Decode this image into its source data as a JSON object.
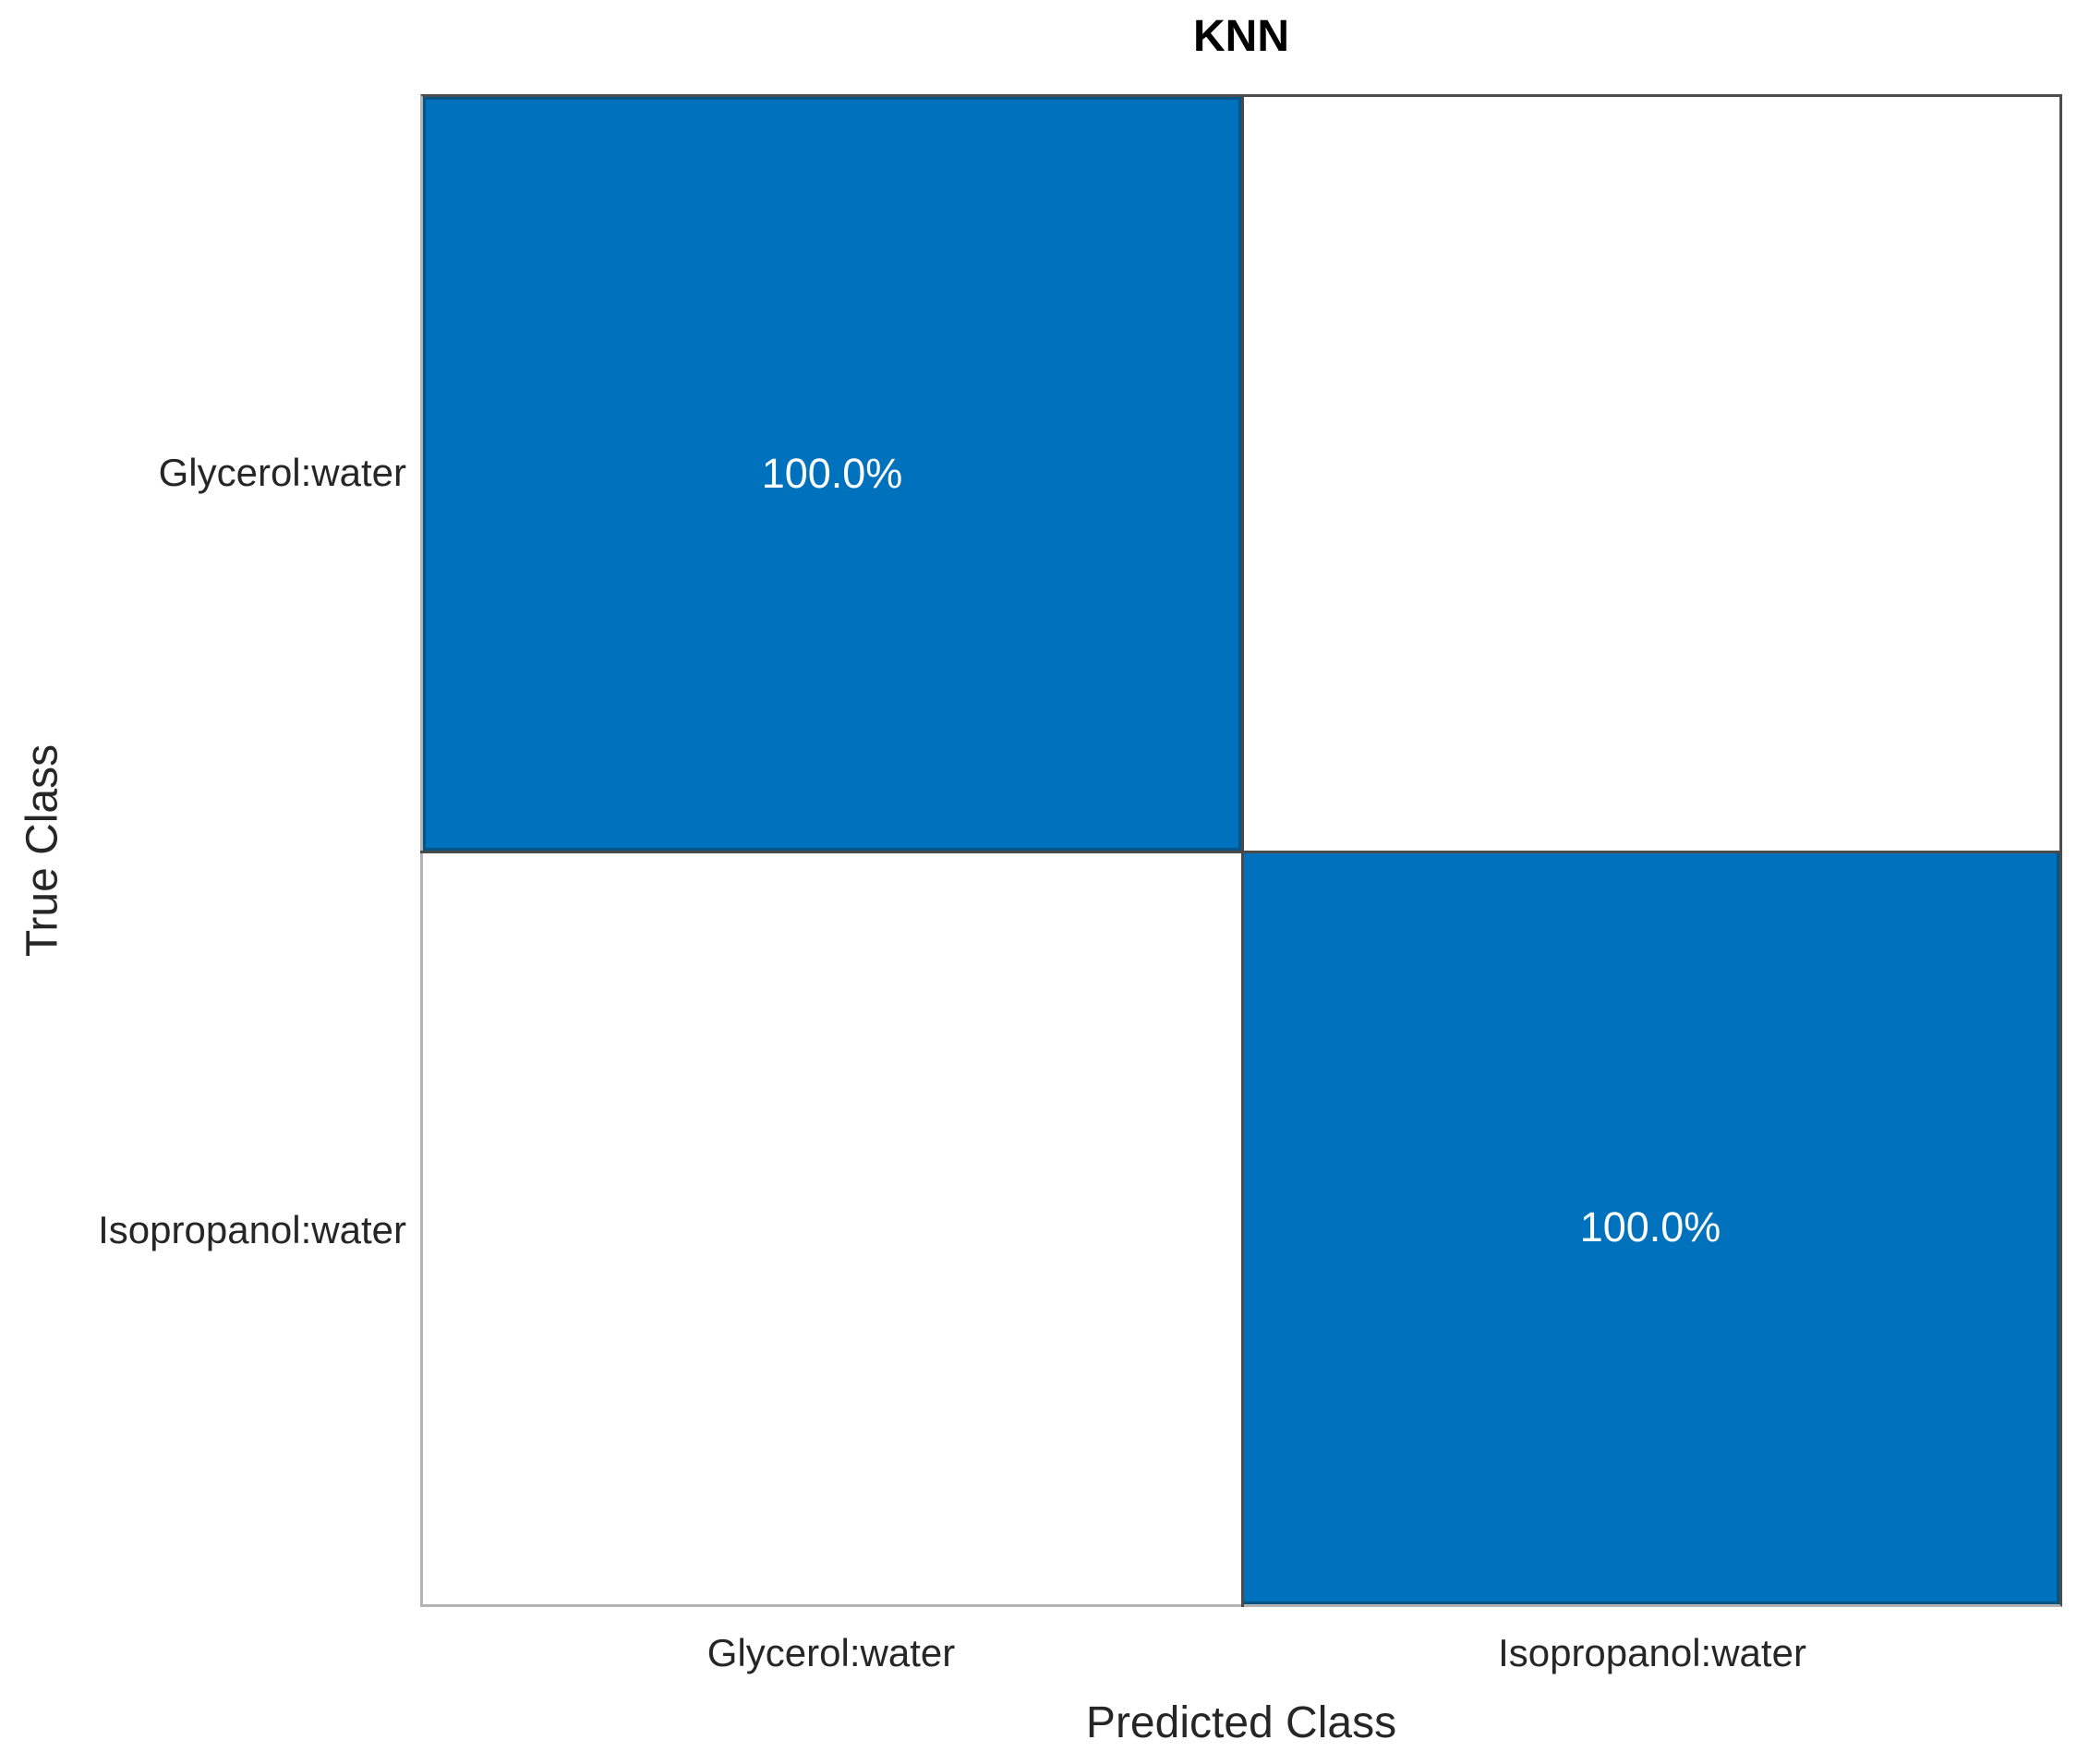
{
  "figure": {
    "title": "KNN",
    "x_axis": {
      "label": "Predicted Class",
      "ticks": [
        "Glycerol:water",
        "Isopropanol:water"
      ]
    },
    "y_axis": {
      "label": "True Class",
      "ticks": [
        "Glycerol:water",
        "Isopropanol:water"
      ]
    },
    "cells": {
      "r0c0": "100.0%",
      "r0c1": "",
      "r1c0": "",
      "r1c1": "100.0%"
    }
  },
  "chart_data": {
    "type": "heatmap",
    "subtype": "confusion-matrix",
    "title": "KNN",
    "xlabel": "Predicted Class",
    "ylabel": "True Class",
    "x_categories": [
      "Glycerol:water",
      "Isopropanol:water"
    ],
    "y_categories": [
      "Glycerol:water",
      "Isopropanol:water"
    ],
    "values_percent": [
      [
        100.0,
        0.0
      ],
      [
        0.0,
        100.0
      ]
    ],
    "cell_labels": [
      [
        "100.0%",
        ""
      ],
      [
        "",
        "100.0%"
      ]
    ],
    "legend": "none",
    "grid": "on",
    "colors": {
      "diagonal_fill": "#0072BD",
      "off_diagonal_fill": "#FFFFFF",
      "cell_text": "#FFFFFF",
      "grid_line": "#4A4A4A",
      "title_text": "#000000",
      "axis_text": "#262626"
    }
  }
}
